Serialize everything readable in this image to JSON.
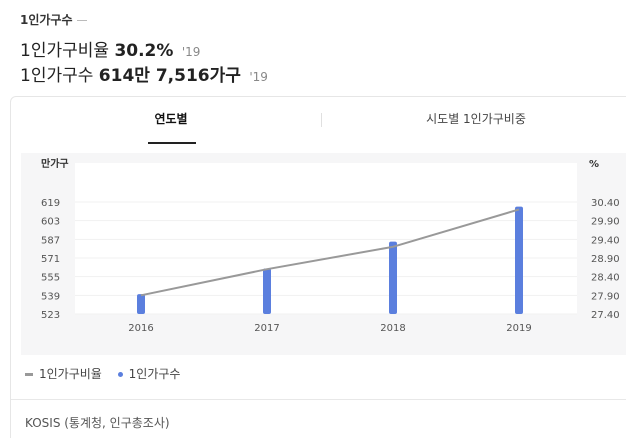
{
  "header": {
    "section_label": "1인가구수",
    "ratio": {
      "label": "1인가구비율",
      "value": "30.2%",
      "year": "'19"
    },
    "count": {
      "label": "1인가구수",
      "value": "614만 7,516가구",
      "year": "'19"
    }
  },
  "tabs": [
    {
      "label": "연도별",
      "active": true
    },
    {
      "label": "시도별 1인가구비중",
      "active": false
    }
  ],
  "chart_data": {
    "type": "bar",
    "categories": [
      "2016",
      "2017",
      "2018",
      "2019"
    ],
    "left_axis": {
      "label": "만가구",
      "ticks": [
        "619",
        "603",
        "587",
        "571",
        "555",
        "539",
        "523"
      ],
      "ylim": [
        523,
        619
      ]
    },
    "right_axis": {
      "label": "%",
      "ticks": [
        "30.40",
        "29.90",
        "29.40",
        "28.90",
        "28.40",
        "27.90",
        "27.40"
      ],
      "ylim": [
        27.4,
        30.4
      ]
    },
    "series": [
      {
        "name": "1인가구비율",
        "kind": "line",
        "axis": "right",
        "color": "#999999",
        "values": [
          27.9,
          28.6,
          29.2,
          30.2
        ]
      },
      {
        "name": "1인가구수",
        "kind": "bar",
        "axis": "left",
        "color": "#5b7fde",
        "values": [
          540,
          562,
          585,
          615
        ]
      }
    ],
    "grid": true,
    "legend_position": "bottom-left"
  },
  "source": "KOSIS (통계청, 인구총조사)"
}
